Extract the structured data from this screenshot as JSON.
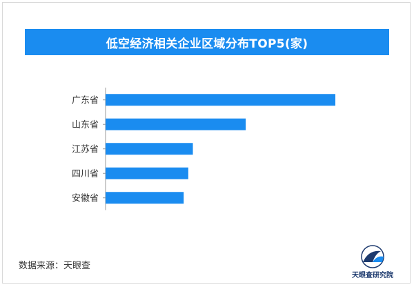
{
  "chart_data": {
    "type": "bar",
    "orientation": "horizontal",
    "title": "低空经济相关企业区域分布TOP5(家)",
    "categories": [
      "广东省",
      "山东省",
      "江苏省",
      "四川省",
      "安徽省"
    ],
    "values": [
      100,
      61,
      38,
      36,
      34
    ],
    "xlim": [
      0,
      100
    ],
    "grid": false,
    "legend": "none",
    "bar_color": "#1a8cf0",
    "axis_color": "#999999"
  },
  "footer": {
    "source": "数据来源：天眼查",
    "logo_label": "天眼查研究院"
  }
}
